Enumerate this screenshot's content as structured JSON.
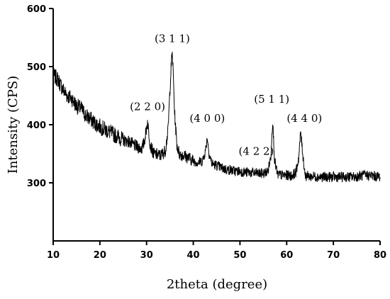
{
  "chart_data": {
    "type": "line",
    "title": "",
    "xlabel": "2theta (degree)",
    "ylabel": "Intensity (CPS)",
    "xlim": [
      10,
      80
    ],
    "ylim": [
      200,
      600
    ],
    "x_ticks": [
      "10",
      "20",
      "30",
      "40",
      "50",
      "60",
      "70",
      "80"
    ],
    "y_ticks": [
      "300",
      "400",
      "500",
      "600"
    ],
    "grid": false,
    "line_color": "#000000",
    "series": [
      {
        "x": [
          10,
          11,
          12,
          13,
          14,
          15,
          16,
          17,
          18,
          19,
          20,
          21,
          22,
          23,
          24,
          25,
          26,
          27,
          28,
          29,
          29.5,
          30.2,
          30.8,
          31.5,
          32,
          33,
          34,
          34.6,
          35,
          35.3,
          35.5,
          35.7,
          36,
          36.5,
          37,
          38,
          39,
          40,
          41,
          42,
          42.6,
          43,
          43.4,
          44,
          45,
          46,
          47,
          48,
          49,
          50,
          51,
          52,
          53,
          54,
          55,
          56,
          56.6,
          57,
          57.4,
          58,
          59,
          60,
          61,
          62,
          62.6,
          63,
          63.5,
          64,
          65,
          66,
          67,
          68,
          69,
          70,
          71,
          72,
          73,
          74,
          75,
          76,
          77,
          78,
          79,
          80
        ],
        "y": [
          485,
          478,
          462,
          450,
          445,
          432,
          428,
          415,
          410,
          402,
          397,
          392,
          388,
          383,
          379,
          373,
          372,
          366,
          362,
          359,
          370,
          405,
          365,
          350,
          349,
          347,
          355,
          390,
          460,
          505,
          522,
          490,
          420,
          365,
          350,
          347,
          343,
          338,
          335,
          338,
          355,
          378,
          350,
          333,
          330,
          326,
          323,
          322,
          320,
          320,
          318,
          318,
          317,
          316,
          316,
          320,
          345,
          408,
          340,
          314,
          313,
          313,
          312,
          318,
          345,
          388,
          345,
          312,
          311,
          311,
          310,
          310,
          310,
          310,
          310,
          310,
          310,
          310,
          311,
          312,
          313,
          313,
          311,
          311
        ]
      }
    ],
    "annotations": [
      {
        "text": "(2 2 0)",
        "x": 30.2,
        "y": 425
      },
      {
        "text": "(3 1 1)",
        "x": 35.5,
        "y": 542
      },
      {
        "text": "(4 0 0)",
        "x": 43,
        "y": 405
      },
      {
        "text": "(4 2 2)",
        "x": 53.5,
        "y": 348
      },
      {
        "text": "(5 1 1)",
        "x": 56.8,
        "y": 438
      },
      {
        "text": "(4 4 0)",
        "x": 63.8,
        "y": 405
      }
    ]
  }
}
